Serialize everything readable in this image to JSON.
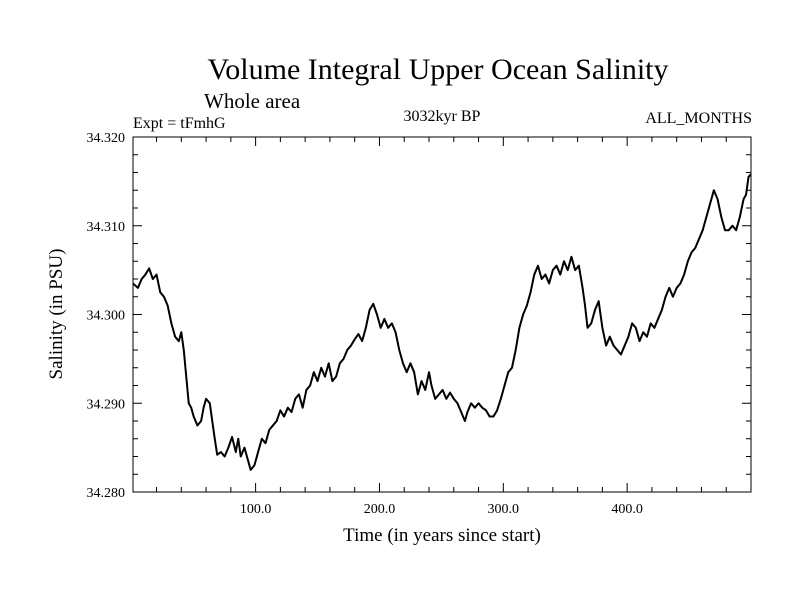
{
  "chart_data": {
    "type": "line",
    "title": "Volume Integral Upper Ocean Salinity",
    "subtitle": "Whole area",
    "experiment_label": "Expt = tFmhG",
    "period_label": "3032kyr BP",
    "months_label": "ALL_MONTHS",
    "xlabel": "Time (in years since start)",
    "ylabel": "Salinity (in PSU)",
    "xlim": [
      1,
      500
    ],
    "ylim": [
      34.28,
      34.32
    ],
    "xticks": [
      {
        "value": 100,
        "label": "100.0"
      },
      {
        "value": 200,
        "label": "200.0"
      },
      {
        "value": 300,
        "label": "300.0"
      },
      {
        "value": 400,
        "label": "400.0"
      }
    ],
    "yticks": [
      {
        "value": 34.28,
        "label": "34.280"
      },
      {
        "value": 34.29,
        "label": "34.290"
      },
      {
        "value": 34.3,
        "label": "34.300"
      },
      {
        "value": 34.31,
        "label": "34.310"
      },
      {
        "value": 34.32,
        "label": "34.320"
      }
    ],
    "series": [
      {
        "name": "salinity",
        "color": "#000000",
        "points": [
          [
            1,
            34.3035
          ],
          [
            5,
            34.303
          ],
          [
            8,
            34.304
          ],
          [
            11,
            34.3045
          ],
          [
            14,
            34.3052
          ],
          [
            17,
            34.304
          ],
          [
            20,
            34.3045
          ],
          [
            23,
            34.3025
          ],
          [
            26,
            34.302
          ],
          [
            29,
            34.301
          ],
          [
            32,
            34.299
          ],
          [
            35,
            34.2975
          ],
          [
            38,
            34.297
          ],
          [
            40,
            34.298
          ],
          [
            42,
            34.296
          ],
          [
            44,
            34.293
          ],
          [
            46,
            34.29
          ],
          [
            48,
            34.2895
          ],
          [
            50,
            34.2885
          ],
          [
            53,
            34.2875
          ],
          [
            56,
            34.288
          ],
          [
            58,
            34.2895
          ],
          [
            60,
            34.2905
          ],
          [
            63,
            34.29
          ],
          [
            65,
            34.288
          ],
          [
            67,
            34.286
          ],
          [
            69,
            34.2842
          ],
          [
            72,
            34.2845
          ],
          [
            75,
            34.284
          ],
          [
            78,
            34.285
          ],
          [
            81,
            34.2862
          ],
          [
            84,
            34.2845
          ],
          [
            86,
            34.286
          ],
          [
            88,
            34.284
          ],
          [
            91,
            34.285
          ],
          [
            94,
            34.2835
          ],
          [
            96,
            34.2825
          ],
          [
            99,
            34.283
          ],
          [
            102,
            34.2845
          ],
          [
            105,
            34.286
          ],
          [
            108,
            34.2855
          ],
          [
            111,
            34.287
          ],
          [
            114,
            34.2875
          ],
          [
            117,
            34.288
          ],
          [
            120,
            34.2892
          ],
          [
            123,
            34.2885
          ],
          [
            126,
            34.2895
          ],
          [
            129,
            34.289
          ],
          [
            132,
            34.2905
          ],
          [
            135,
            34.291
          ],
          [
            138,
            34.2895
          ],
          [
            141,
            34.2915
          ],
          [
            144,
            34.292
          ],
          [
            147,
            34.2935
          ],
          [
            150,
            34.2925
          ],
          [
            153,
            34.294
          ],
          [
            156,
            34.293
          ],
          [
            159,
            34.2945
          ],
          [
            162,
            34.2925
          ],
          [
            165,
            34.293
          ],
          [
            168,
            34.2945
          ],
          [
            171,
            34.295
          ],
          [
            174,
            34.296
          ],
          [
            177,
            34.2965
          ],
          [
            180,
            34.2972
          ],
          [
            183,
            34.2978
          ],
          [
            186,
            34.297
          ],
          [
            189,
            34.2985
          ],
          [
            192,
            34.3005
          ],
          [
            195,
            34.3012
          ],
          [
            198,
            34.3
          ],
          [
            201,
            34.2985
          ],
          [
            204,
            34.2995
          ],
          [
            207,
            34.2985
          ],
          [
            210,
            34.299
          ],
          [
            213,
            34.298
          ],
          [
            216,
            34.296
          ],
          [
            219,
            34.2945
          ],
          [
            222,
            34.2935
          ],
          [
            225,
            34.2945
          ],
          [
            228,
            34.2935
          ],
          [
            231,
            34.291
          ],
          [
            234,
            34.2925
          ],
          [
            237,
            34.2915
          ],
          [
            240,
            34.2935
          ],
          [
            242,
            34.292
          ],
          [
            245,
            34.2905
          ],
          [
            248,
            34.291
          ],
          [
            251,
            34.2915
          ],
          [
            254,
            34.2905
          ],
          [
            257,
            34.2912
          ],
          [
            260,
            34.2905
          ],
          [
            263,
            34.29
          ],
          [
            266,
            34.289
          ],
          [
            269,
            34.288
          ],
          [
            271,
            34.289
          ],
          [
            274,
            34.29
          ],
          [
            277,
            34.2895
          ],
          [
            280,
            34.29
          ],
          [
            283,
            34.2895
          ],
          [
            286,
            34.2892
          ],
          [
            289,
            34.2885
          ],
          [
            292,
            34.2885
          ],
          [
            295,
            34.2892
          ],
          [
            298,
            34.2905
          ],
          [
            301,
            34.292
          ],
          [
            304,
            34.2935
          ],
          [
            307,
            34.294
          ],
          [
            310,
            34.296
          ],
          [
            313,
            34.2985
          ],
          [
            316,
            34.3
          ],
          [
            319,
            34.301
          ],
          [
            322,
            34.3025
          ],
          [
            325,
            34.3045
          ],
          [
            328,
            34.3055
          ],
          [
            331,
            34.304
          ],
          [
            334,
            34.3045
          ],
          [
            337,
            34.3035
          ],
          [
            340,
            34.305
          ],
          [
            343,
            34.3055
          ],
          [
            346,
            34.3045
          ],
          [
            349,
            34.306
          ],
          [
            352,
            34.305
          ],
          [
            355,
            34.3065
          ],
          [
            358,
            34.305
          ],
          [
            361,
            34.3055
          ],
          [
            364,
            34.303
          ],
          [
            366,
            34.301
          ],
          [
            368,
            34.2985
          ],
          [
            371,
            34.299
          ],
          [
            374,
            34.3005
          ],
          [
            377,
            34.3015
          ],
          [
            380,
            34.2985
          ],
          [
            383,
            34.2965
          ],
          [
            386,
            34.2975
          ],
          [
            389,
            34.2965
          ],
          [
            392,
            34.296
          ],
          [
            395,
            34.2955
          ],
          [
            398,
            34.2965
          ],
          [
            401,
            34.2975
          ],
          [
            404,
            34.299
          ],
          [
            407,
            34.2985
          ],
          [
            410,
            34.297
          ],
          [
            413,
            34.298
          ],
          [
            416,
            34.2975
          ],
          [
            419,
            34.299
          ],
          [
            422,
            34.2985
          ],
          [
            425,
            34.2995
          ],
          [
            428,
            34.3005
          ],
          [
            431,
            34.302
          ],
          [
            434,
            34.303
          ],
          [
            437,
            34.302
          ],
          [
            440,
            34.303
          ],
          [
            443,
            34.3035
          ],
          [
            446,
            34.3045
          ],
          [
            449,
            34.306
          ],
          [
            452,
            34.307
          ],
          [
            455,
            34.3075
          ],
          [
            458,
            34.3085
          ],
          [
            461,
            34.3095
          ],
          [
            464,
            34.311
          ],
          [
            467,
            34.3125
          ],
          [
            470,
            34.314
          ],
          [
            473,
            34.313
          ],
          [
            476,
            34.311
          ],
          [
            479,
            34.3095
          ],
          [
            482,
            34.3095
          ],
          [
            485,
            34.31
          ],
          [
            488,
            34.3095
          ],
          [
            491,
            34.311
          ],
          [
            494,
            34.313
          ],
          [
            496,
            34.3135
          ],
          [
            498,
            34.3155
          ],
          [
            500,
            34.3158
          ]
        ]
      }
    ]
  }
}
